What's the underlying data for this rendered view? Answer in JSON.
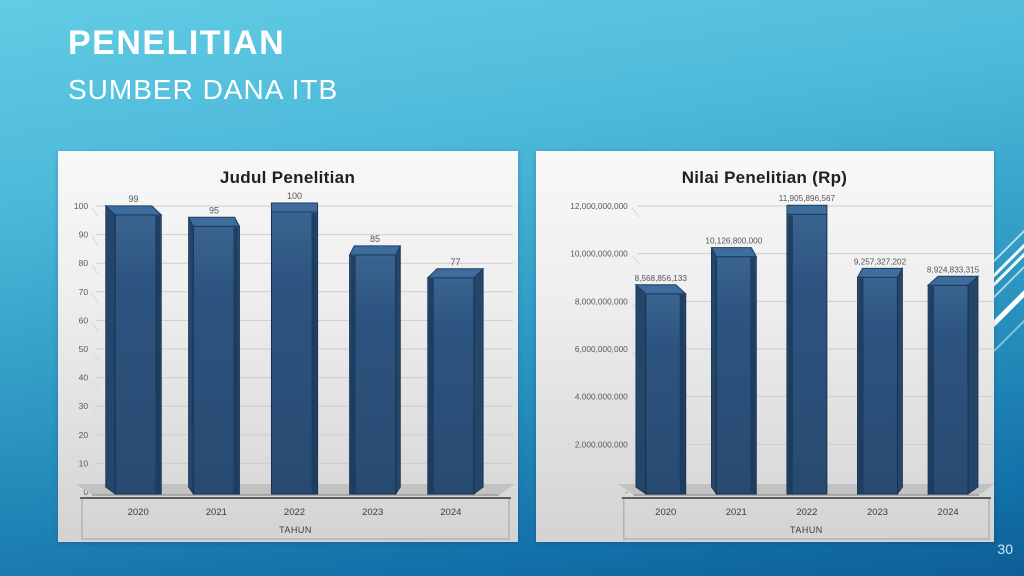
{
  "slide": {
    "title": "PENELITIAN",
    "subtitle": "SUMBER DANA ITB",
    "page_number": "30"
  },
  "colors": {
    "background_top": "#62cce5",
    "background_bottom": "#0e5e96",
    "bar_front": "#2d5480",
    "bar_front_light": "#3a648f",
    "bar_top": "#3e6c9d",
    "bar_side": "#1b3a5c",
    "bar_outline": "#16304e",
    "chart_title_text": "#1f1f1f",
    "tick_text": "#585858",
    "value_text": "#555555",
    "category_text": "#3c3c3c",
    "gridline": "#cdcdcd",
    "floor": "#c2c2c2",
    "axis_line": "#5f5f5f",
    "frame_line": "#a3a3a3"
  },
  "chart_data": [
    {
      "type": "bar",
      "title": "Judul Penelitian",
      "xlabel": "TAHUN",
      "ylabel": "",
      "categories": [
        "2020",
        "2021",
        "2022",
        "2023",
        "2024"
      ],
      "values": [
        99,
        95,
        100,
        85,
        77
      ],
      "value_labels": [
        "99",
        "95",
        "100",
        "85",
        "77"
      ],
      "ylim": [
        0,
        100
      ],
      "tick_values": [
        0,
        10,
        20,
        30,
        40,
        50,
        60,
        70,
        80,
        90,
        100
      ],
      "tick_labels": [
        "0",
        "10",
        "20",
        "30",
        "40",
        "50",
        "60",
        "70",
        "80",
        "90",
        "100"
      ],
      "grid": true,
      "legend": "none"
    },
    {
      "type": "bar",
      "title": "Nilai Penelitian (Rp)",
      "xlabel": "TAHUN",
      "ylabel": "",
      "categories": [
        "2020",
        "2021",
        "2022",
        "2023",
        "2024"
      ],
      "values": [
        8568856133,
        10126800000,
        11905896567,
        9257327202,
        8924833315
      ],
      "value_labels": [
        "8,568,856,133",
        "10,126,800,000",
        "11,905,896,567",
        "9,257,327,202",
        "8,924,833,315"
      ],
      "ylim": [
        0,
        12000000000
      ],
      "tick_values": [
        0,
        2000000000,
        4000000000,
        6000000000,
        8000000000,
        10000000000,
        12000000000
      ],
      "tick_labels": [
        "-",
        "2,000,000,000",
        "4,000,000,000",
        "6,000,000,000",
        "8,000,000,000",
        "10,000,000,000",
        "12,000,000,000"
      ],
      "grid": true,
      "legend": "none"
    }
  ]
}
